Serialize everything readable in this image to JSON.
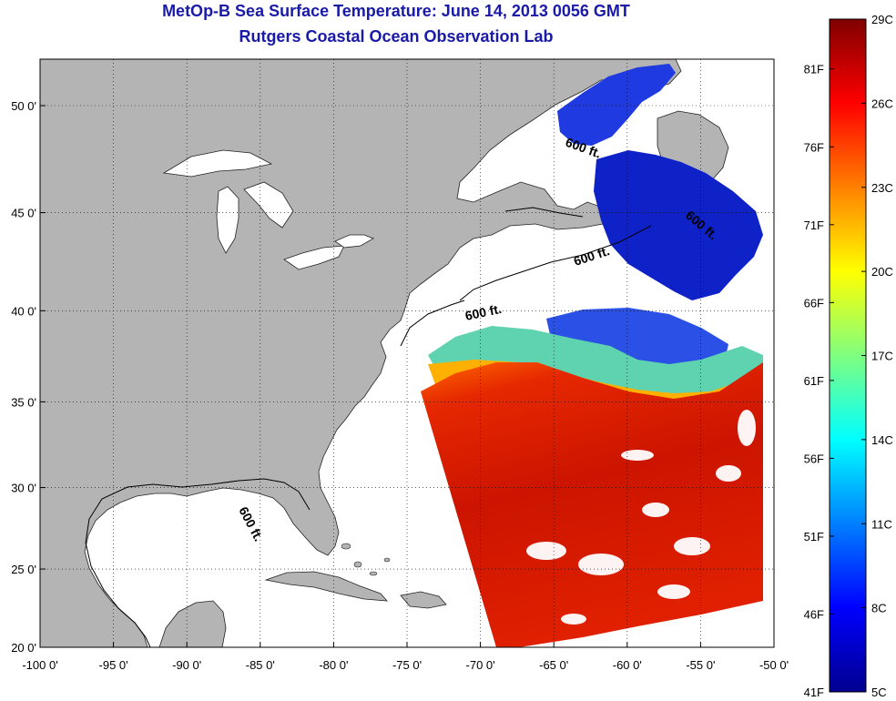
{
  "title": "MetOp-B Sea Surface Temperature:  June 14, 2013 0056 GMT",
  "subtitle": "Rutgers Coastal Ocean Observation Lab",
  "lon_ticks": [
    "-100 0'",
    "-95 0'",
    "-90 0'",
    "-85 0'",
    "-80 0'",
    "-75 0'",
    "-70 0'",
    "-65 0'",
    "-60 0'",
    "-55 0'",
    "-50 0'"
  ],
  "lat_ticks": [
    "50 0'",
    "45 0'",
    "40 0'",
    "35 0'",
    "30 0'",
    "25 0'",
    "20 0'"
  ],
  "contour_labels": [
    "600 ft.",
    "600 ft.",
    "600 ft.",
    "600 ft.",
    "600 ft."
  ],
  "colorbar": {
    "celsius": [
      "29C",
      "26C",
      "23C",
      "20C",
      "17C",
      "14C",
      "11C",
      "8C",
      "5C"
    ],
    "fahrenheit": [
      "81F",
      "76F",
      "71F",
      "66F",
      "61F",
      "56F",
      "51F",
      "46F",
      "41F"
    ],
    "min_c": 5,
    "max_c": 29
  },
  "colors": {
    "land": "#b4b4b4",
    "title": "#1a1aa8",
    "warm": "#d42000",
    "cold": "#1a2ed8"
  }
}
